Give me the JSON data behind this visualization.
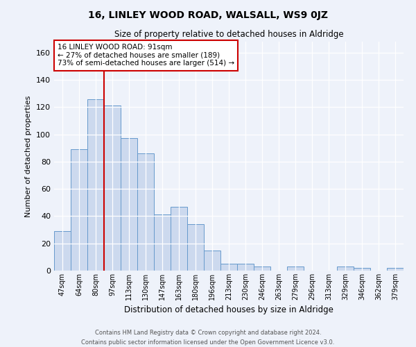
{
  "title": "16, LINLEY WOOD ROAD, WALSALL, WS9 0JZ",
  "subtitle": "Size of property relative to detached houses in Aldridge",
  "xlabel": "Distribution of detached houses by size in Aldridge",
  "ylabel": "Number of detached properties",
  "bin_labels": [
    "47sqm",
    "64sqm",
    "80sqm",
    "97sqm",
    "113sqm",
    "130sqm",
    "147sqm",
    "163sqm",
    "180sqm",
    "196sqm",
    "213sqm",
    "230sqm",
    "246sqm",
    "263sqm",
    "279sqm",
    "296sqm",
    "313sqm",
    "329sqm",
    "346sqm",
    "362sqm",
    "379sqm"
  ],
  "bin_values": [
    29,
    89,
    126,
    121,
    97,
    86,
    41,
    47,
    34,
    15,
    5,
    5,
    3,
    0,
    3,
    0,
    0,
    3,
    2,
    0,
    2
  ],
  "bar_color": "#ccd9ee",
  "bar_edge_color": "#6699cc",
  "vline_color": "#cc0000",
  "annotation_title": "16 LINLEY WOOD ROAD: 91sqm",
  "annotation_line1": "← 27% of detached houses are smaller (189)",
  "annotation_line2": "73% of semi-detached houses are larger (514) →",
  "annotation_box_color": "#ffffff",
  "annotation_box_edge": "#cc0000",
  "ylim": [
    0,
    168
  ],
  "yticks": [
    0,
    20,
    40,
    60,
    80,
    100,
    120,
    140,
    160
  ],
  "footer_line1": "Contains HM Land Registry data © Crown copyright and database right 2024.",
  "footer_line2": "Contains public sector information licensed under the Open Government Licence v3.0.",
  "bg_color": "#eef2fa",
  "plot_bg_color": "#eef2fa",
  "vline_bin_index": 2
}
